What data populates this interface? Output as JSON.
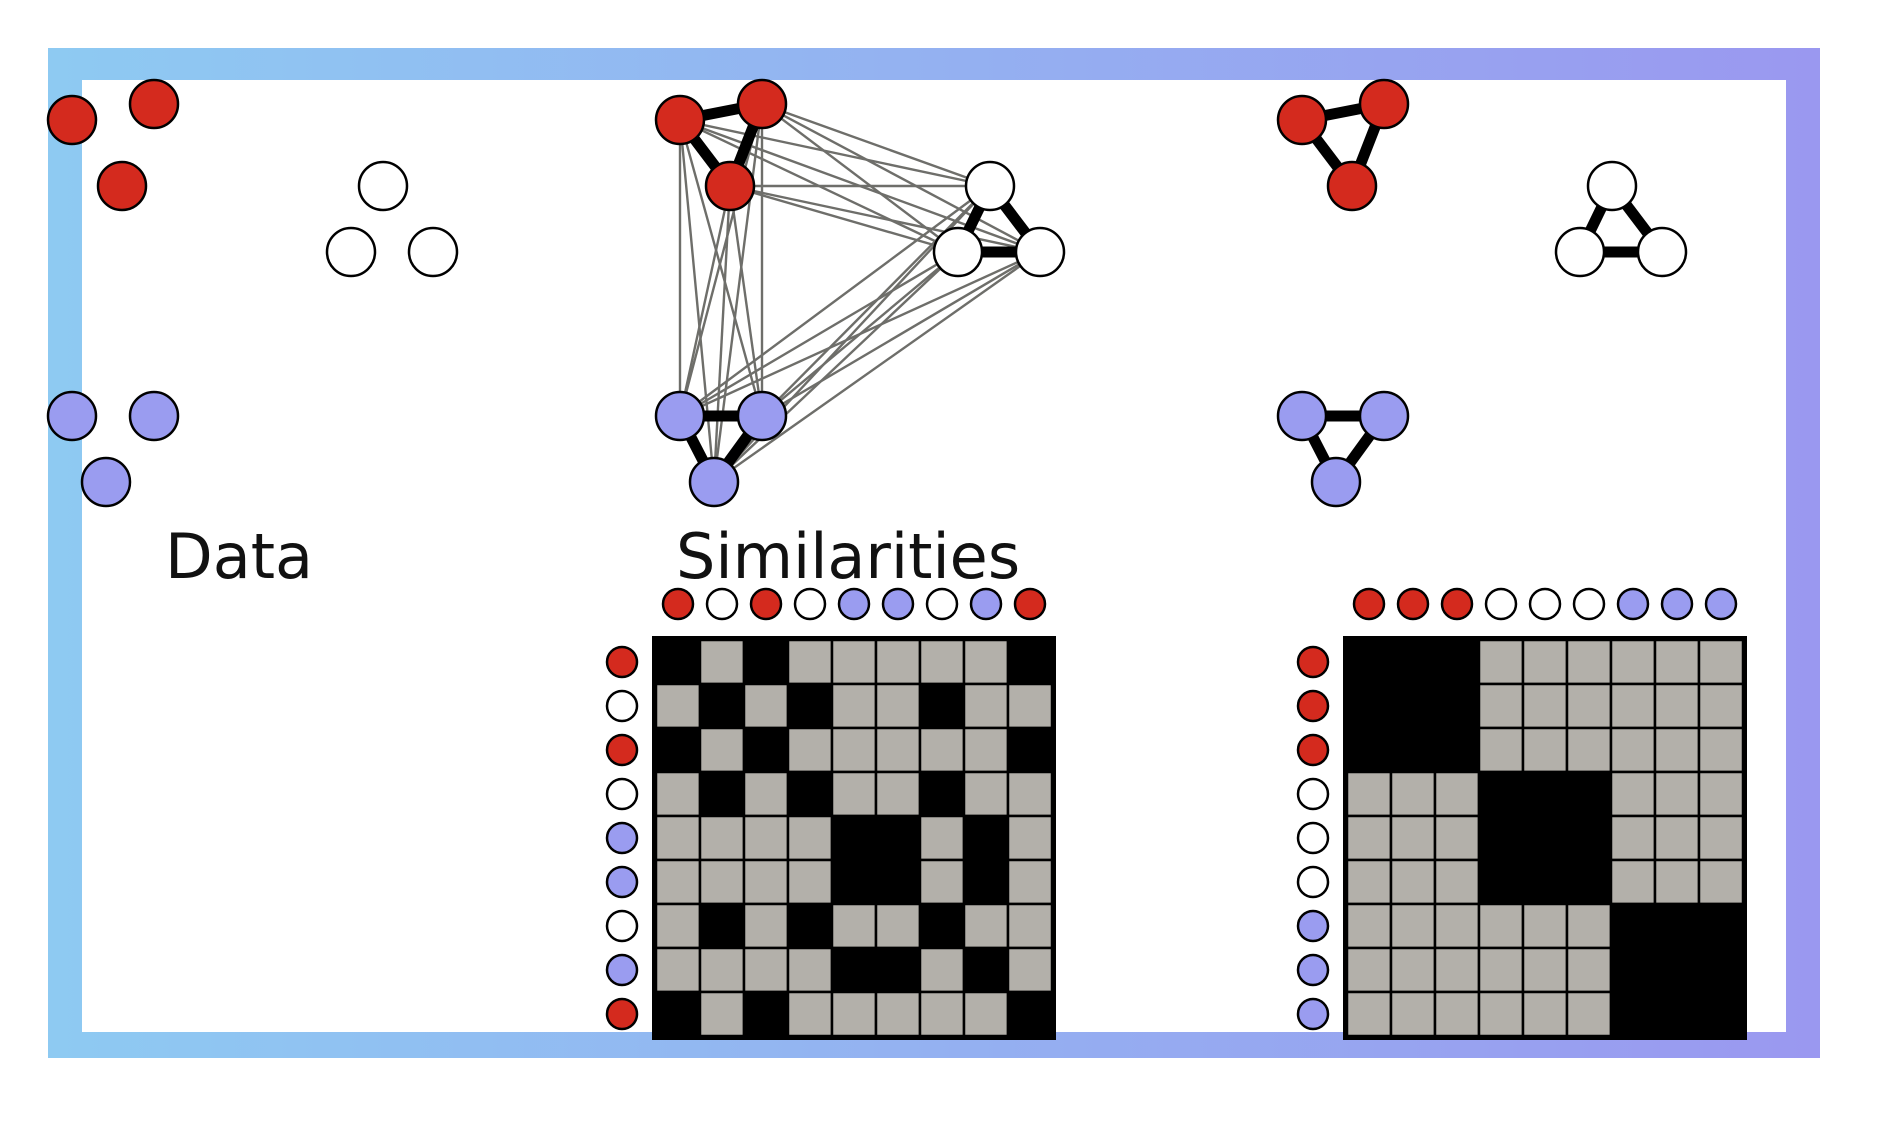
{
  "labels": {
    "data": "Data",
    "similarities": "Similarities"
  },
  "colors": {
    "red": "#d42a1e",
    "white": "#ffffff",
    "blue": "#9a9cf0",
    "block": "#000000",
    "gray": "#b3b0aa",
    "cell_line": "#000000",
    "link": "#6e6e6a",
    "frame_light": "#8ecaf2",
    "frame_dark": "#9a98f0"
  },
  "data_panel": {
    "clusters": [
      {
        "color": "red",
        "points": [
          "r1",
          "r2",
          "r3"
        ]
      },
      {
        "color": "white",
        "points": [
          "w1",
          "w2",
          "w3"
        ]
      },
      {
        "color": "blue",
        "points": [
          "b1",
          "b2",
          "b3"
        ]
      }
    ]
  },
  "similarity_matrix_unordered": {
    "order": [
      "red",
      "white",
      "red",
      "white",
      "blue",
      "blue",
      "white",
      "blue",
      "red"
    ],
    "rule": "black where row and column belong to the same cluster, gray otherwise"
  },
  "similarity_matrix_ordered": {
    "order": [
      "red",
      "red",
      "red",
      "white",
      "white",
      "white",
      "blue",
      "blue",
      "blue"
    ],
    "rule": "black where row and column belong to the same cluster, gray otherwise"
  }
}
